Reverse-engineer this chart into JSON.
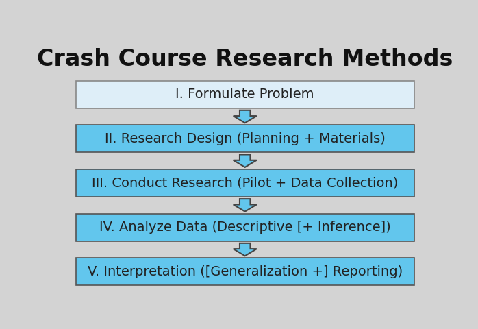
{
  "title": "Crash Course Research Methods",
  "title_fontsize": 24,
  "title_fontweight": "bold",
  "background_color": "#d3d3d3",
  "boxes": [
    {
      "label": "I. Formulate Problem",
      "facecolor": "#deeef8",
      "edgecolor": "#888888",
      "fontsize": 14
    },
    {
      "label": "II. Research Design (Planning + Materials)",
      "facecolor": "#62c6ed",
      "edgecolor": "#555555",
      "fontsize": 14
    },
    {
      "label": "III. Conduct Research (Pilot + Data Collection)",
      "facecolor": "#62c6ed",
      "edgecolor": "#555555",
      "fontsize": 14
    },
    {
      "label": "IV. Analyze Data (Descriptive [+ Inference])",
      "facecolor": "#62c6ed",
      "edgecolor": "#555555",
      "fontsize": 14
    },
    {
      "label": "V. Interpretation ([Generalization +] Reporting)",
      "facecolor": "#62c6ed",
      "edgecolor": "#555555",
      "fontsize": 14
    }
  ],
  "arrow_facecolor": "#62c6ed",
  "arrow_edgecolor": "#444444",
  "text_color": "#222222",
  "title_color": "#111111"
}
